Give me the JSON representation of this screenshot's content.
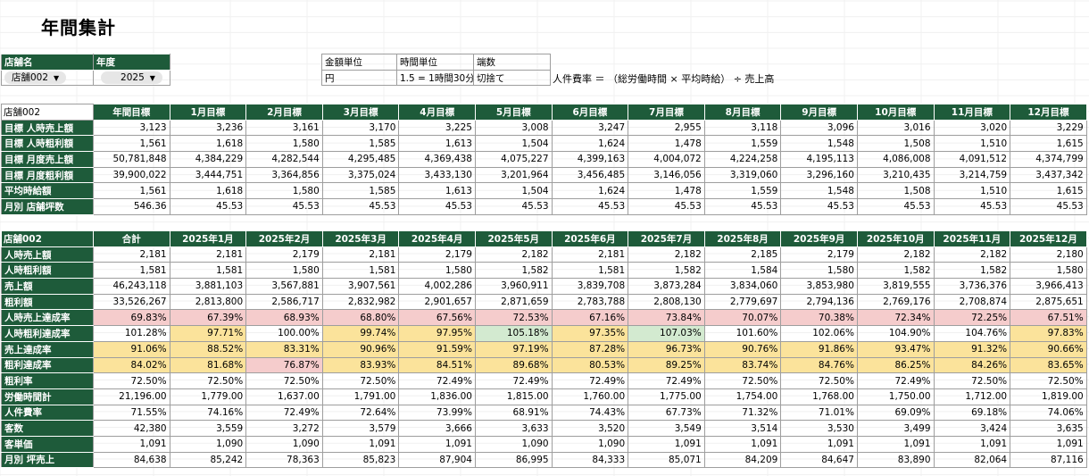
{
  "page_title": "年間集計",
  "controls": {
    "store_label": "店舗名",
    "store_value": "店舗002",
    "year_label": "年度",
    "year_value": "2025",
    "money_unit_label": "金額単位",
    "money_unit_value": "円",
    "time_unit_label": "時間単位",
    "time_unit_value": "1.5 = 1時間30分",
    "rounding_label": "端数",
    "rounding_value": "切捨て",
    "formula_note": "人件費率 ＝ （総労働時間 × 平均時給） ÷ 売上高"
  },
  "targets": {
    "corner": "店舗002",
    "columns": [
      "年間目標",
      "1月目標",
      "2月目標",
      "3月目標",
      "4月目標",
      "5月目標",
      "6月目標",
      "7月目標",
      "8月目標",
      "9月目標",
      "10月目標",
      "11月目標",
      "12月目標"
    ],
    "rows": [
      {
        "label": "目標 人時売上額",
        "values": [
          "3,123",
          "3,236",
          "3,161",
          "3,170",
          "3,225",
          "3,008",
          "3,247",
          "2,955",
          "3,118",
          "3,096",
          "3,016",
          "3,020",
          "3,229"
        ]
      },
      {
        "label": "目標 人時粗利額",
        "values": [
          "1,561",
          "1,618",
          "1,580",
          "1,585",
          "1,613",
          "1,504",
          "1,624",
          "1,478",
          "1,559",
          "1,548",
          "1,508",
          "1,510",
          "1,615"
        ]
      },
      {
        "label": "目標 月度売上額",
        "values": [
          "50,781,848",
          "4,384,229",
          "4,282,544",
          "4,295,485",
          "4,369,438",
          "4,075,227",
          "4,399,163",
          "4,004,072",
          "4,224,258",
          "4,195,113",
          "4,086,008",
          "4,091,512",
          "4,374,799"
        ]
      },
      {
        "label": "目標 月度粗利額",
        "values": [
          "39,900,022",
          "3,444,751",
          "3,364,856",
          "3,375,024",
          "3,433,130",
          "3,201,964",
          "3,456,485",
          "3,146,056",
          "3,319,060",
          "3,296,160",
          "3,210,435",
          "3,214,759",
          "3,437,342"
        ]
      },
      {
        "label": "平均時給額",
        "values": [
          "1,561",
          "1,618",
          "1,580",
          "1,585",
          "1,613",
          "1,504",
          "1,624",
          "1,478",
          "1,559",
          "1,548",
          "1,508",
          "1,510",
          "1,615"
        ]
      },
      {
        "label": "月別 店舗坪数",
        "values": [
          "546.36",
          "45.53",
          "45.53",
          "45.53",
          "45.53",
          "45.53",
          "45.53",
          "45.53",
          "45.53",
          "45.53",
          "45.53",
          "45.53",
          "45.53"
        ]
      }
    ]
  },
  "actuals": {
    "corner": "店舗002",
    "columns": [
      "合計",
      "2025年1月",
      "2025年2月",
      "2025年3月",
      "2025年4月",
      "2025年5月",
      "2025年6月",
      "2025年7月",
      "2025年8月",
      "2025年9月",
      "2025年10月",
      "2025年11月",
      "2025年12月"
    ],
    "rows": [
      {
        "label": "人時売上額",
        "values": [
          "2,181",
          "2,181",
          "2,179",
          "2,181",
          "2,179",
          "2,182",
          "2,181",
          "2,182",
          "2,185",
          "2,179",
          "2,182",
          "2,182",
          "2,180"
        ]
      },
      {
        "label": "人時粗利額",
        "values": [
          "1,581",
          "1,581",
          "1,580",
          "1,581",
          "1,580",
          "1,582",
          "1,581",
          "1,582",
          "1,584",
          "1,580",
          "1,582",
          "1,582",
          "1,580"
        ]
      },
      {
        "label": "売上額",
        "values": [
          "46,243,118",
          "3,881,103",
          "3,567,881",
          "3,907,561",
          "4,002,286",
          "3,960,911",
          "3,839,708",
          "3,873,284",
          "3,834,060",
          "3,853,980",
          "3,819,555",
          "3,736,376",
          "3,966,413"
        ]
      },
      {
        "label": "粗利額",
        "values": [
          "33,526,267",
          "2,813,800",
          "2,586,717",
          "2,832,982",
          "2,901,657",
          "2,871,659",
          "2,783,788",
          "2,808,130",
          "2,779,697",
          "2,794,136",
          "2,769,176",
          "2,708,874",
          "2,875,651"
        ]
      },
      {
        "label": "人時売上達成率",
        "values": [
          "69.83%",
          "67.39%",
          "68.93%",
          "68.80%",
          "67.56%",
          "72.53%",
          "67.16%",
          "73.84%",
          "70.07%",
          "70.38%",
          "72.34%",
          "72.25%",
          "67.51%"
        ],
        "colors": [
          "pink",
          "pink",
          "pink",
          "pink",
          "pink",
          "pink",
          "pink",
          "pink",
          "pink",
          "pink",
          "pink",
          "pink",
          "pink"
        ]
      },
      {
        "label": "人時粗利達成率",
        "values": [
          "101.28%",
          "97.71%",
          "100.00%",
          "99.74%",
          "97.95%",
          "105.18%",
          "97.35%",
          "107.03%",
          "101.60%",
          "102.06%",
          "104.90%",
          "104.76%",
          "97.83%"
        ],
        "colors": [
          "",
          "yel",
          "",
          "yel",
          "yel",
          "grn",
          "yel",
          "grn",
          "",
          "",
          "",
          "",
          "yel"
        ]
      },
      {
        "label": "売上達成率",
        "values": [
          "91.06%",
          "88.52%",
          "83.31%",
          "90.96%",
          "91.59%",
          "97.19%",
          "87.28%",
          "96.73%",
          "90.76%",
          "91.86%",
          "93.47%",
          "91.32%",
          "90.66%"
        ],
        "colors": [
          "yel",
          "yel",
          "yel",
          "yel",
          "yel",
          "yel",
          "yel",
          "yel",
          "yel",
          "yel",
          "yel",
          "yel",
          "yel"
        ]
      },
      {
        "label": "粗利達成率",
        "values": [
          "84.02%",
          "81.68%",
          "76.87%",
          "83.93%",
          "84.51%",
          "89.68%",
          "80.53%",
          "89.25%",
          "83.74%",
          "84.76%",
          "86.25%",
          "84.26%",
          "83.65%"
        ],
        "colors": [
          "yel",
          "yel",
          "pink",
          "yel",
          "yel",
          "yel",
          "yel",
          "yel",
          "yel",
          "yel",
          "yel",
          "yel",
          "yel"
        ]
      },
      {
        "label": "粗利率",
        "values": [
          "72.50%",
          "72.50%",
          "72.50%",
          "72.50%",
          "72.49%",
          "72.49%",
          "72.49%",
          "72.49%",
          "72.50%",
          "72.50%",
          "72.49%",
          "72.50%",
          "72.50%"
        ]
      },
      {
        "label": "労働時間計",
        "values": [
          "21,196.00",
          "1,779.00",
          "1,637.00",
          "1,791.00",
          "1,836.00",
          "1,815.00",
          "1,760.00",
          "1,775.00",
          "1,754.00",
          "1,768.00",
          "1,750.00",
          "1,712.00",
          "1,819.00"
        ]
      },
      {
        "label": "人件費率",
        "values": [
          "71.55%",
          "74.16%",
          "72.49%",
          "72.64%",
          "73.99%",
          "68.91%",
          "74.43%",
          "67.73%",
          "71.32%",
          "71.01%",
          "69.09%",
          "69.18%",
          "74.06%"
        ]
      },
      {
        "label": "客数",
        "values": [
          "42,380",
          "3,559",
          "3,272",
          "3,579",
          "3,666",
          "3,633",
          "3,520",
          "3,549",
          "3,514",
          "3,530",
          "3,499",
          "3,424",
          "3,635"
        ]
      },
      {
        "label": "客単価",
        "values": [
          "1,091",
          "1,090",
          "1,090",
          "1,091",
          "1,091",
          "1,090",
          "1,090",
          "1,091",
          "1,091",
          "1,091",
          "1,091",
          "1,091",
          "1,091"
        ]
      },
      {
        "label": "月別 坪売上",
        "values": [
          "84,638",
          "85,242",
          "78,363",
          "85,823",
          "87,904",
          "86,995",
          "84,333",
          "85,071",
          "84,209",
          "84,647",
          "83,890",
          "82,064",
          "87,116"
        ]
      }
    ]
  },
  "colors": {
    "header_green": "#1e5b3a",
    "pink": "#f5cccc",
    "yellow": "#fbe39b",
    "green": "#d3ead0"
  }
}
